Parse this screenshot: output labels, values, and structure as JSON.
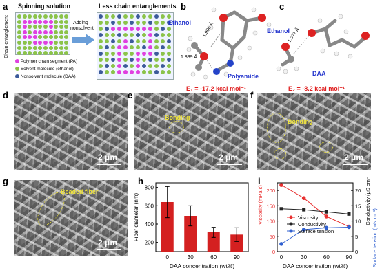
{
  "panels": {
    "a": "a",
    "b": "b",
    "c": "c",
    "d": "d",
    "e": "e",
    "f": "f",
    "g": "g",
    "h": "h",
    "i": "i"
  },
  "panel_a": {
    "title_left": "Spinning solution",
    "title_right": "Less chain entanglements",
    "y_axis": "Chain entanglement",
    "arrow_line1": "Adding",
    "arrow_line2": "nonsolvent",
    "legend": [
      {
        "label": "Polymer chain segment (PA)",
        "color": "#e040e0"
      },
      {
        "label": "Solvent molecule (ethanol)",
        "color": "#8bc34a"
      },
      {
        "label": "Nonsolvent molecule (DAA)",
        "color": "#3c5a9a"
      }
    ]
  },
  "panel_b": {
    "ethanol": "Ethanol",
    "polyamide": "Polyamide",
    "dist1": "1.906 Å",
    "dist2": "1.839 Å",
    "energy": "E₁ = -17.2 kcal mol⁻¹"
  },
  "panel_c": {
    "ethanol": "Ethanol",
    "daa": "DAA",
    "dist": "1.977 Å",
    "energy": "E₂ = -8.2 kcal mol⁻¹"
  },
  "sem": {
    "scale": "2 μm",
    "bonding": "Bonding",
    "beaded": "Beaded fiber"
  },
  "colors": {
    "bar": "#d42020",
    "viscosity": "#e83030",
    "conductivity": "#222222",
    "surface_tension": "#3060d0",
    "label_blue": "#2233cc",
    "label_red": "#e02020"
  },
  "chart_data": [
    {
      "type": "bar",
      "categories": [
        "0",
        "30",
        "60",
        "90"
      ],
      "values": [
        640,
        490,
        310,
        285
      ],
      "errors": [
        170,
        110,
        55,
        75
      ],
      "xlabel": "DAA concentration (wt%)",
      "ylabel": "Fiber diameter (nm)",
      "ylim": [
        100,
        850
      ],
      "yticks": [
        "200",
        "400",
        "600",
        "800"
      ]
    },
    {
      "type": "line",
      "x": [
        0,
        30,
        60,
        90
      ],
      "xlabel": "DAA concentration (wt%)",
      "xticks": [
        "0",
        "30",
        "60",
        "90"
      ],
      "ylabel_left": "Viscosity (mPa s)",
      "ylabel_right_top": "Conductivity (μS cm⁻¹)",
      "ylabel_right_bottom": "Surface tension (mN m⁻¹)",
      "yticks_left": [
        "0",
        "50",
        "100",
        "150",
        "200"
      ],
      "yticks_right": [
        "0",
        "5",
        "10",
        "15",
        "20"
      ],
      "series": [
        {
          "name": "Viscosity",
          "values": [
            218,
            175,
            115,
            82
          ]
        },
        {
          "name": "Conductivity",
          "values": [
            14,
            13.7,
            13,
            12.3
          ]
        },
        {
          "name": "Surface tension",
          "values": [
            2.5,
            7.2,
            7.8,
            8.0
          ]
        }
      ]
    }
  ]
}
